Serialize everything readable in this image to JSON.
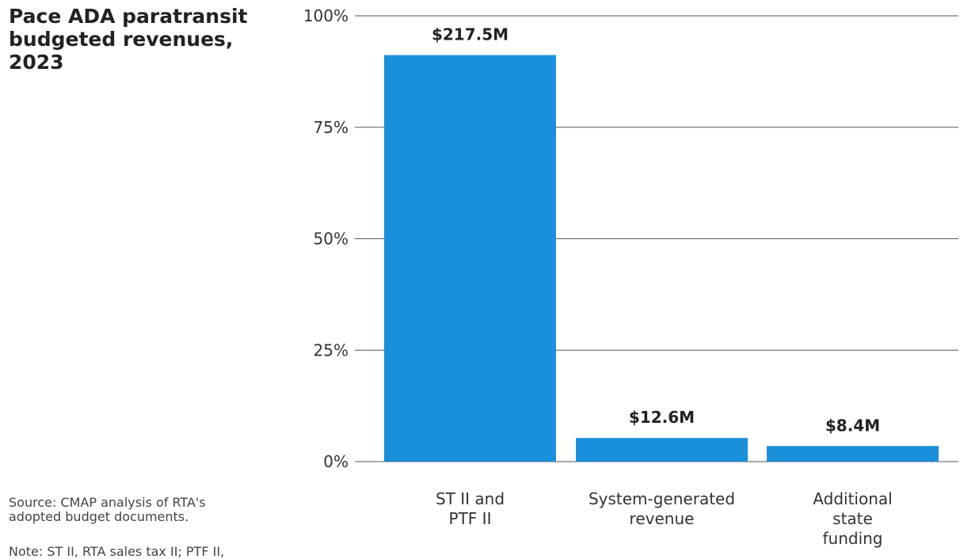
{
  "chart_data": {
    "type": "bar",
    "title": "Pace ADA paratransit\nbudgeted revenues,\n2023",
    "categories": [
      [
        "ST II and",
        "PTF II"
      ],
      [
        "System-generated",
        "revenue"
      ],
      [
        "Additional",
        "state",
        "funding"
      ]
    ],
    "values": [
      91.2,
      5.3,
      3.5
    ],
    "value_labels": [
      "$217.5M",
      "$12.6M",
      "$8.4M"
    ],
    "xlabel": "",
    "ylabel": "",
    "ylim": [
      0,
      100
    ],
    "yticks": [
      "0%",
      "25%",
      "50%",
      "75%",
      "100%"
    ],
    "ytick_values": [
      0,
      25,
      50,
      75,
      100
    ],
    "grid": true,
    "bar_color": "#1a8fdc",
    "grid_color": "#555555"
  },
  "footnotes": {
    "source": "Source: CMAP analysis of RTA's\nadopted budget documents.",
    "note": "Note: ST II, RTA sales tax II; PTF II,"
  }
}
